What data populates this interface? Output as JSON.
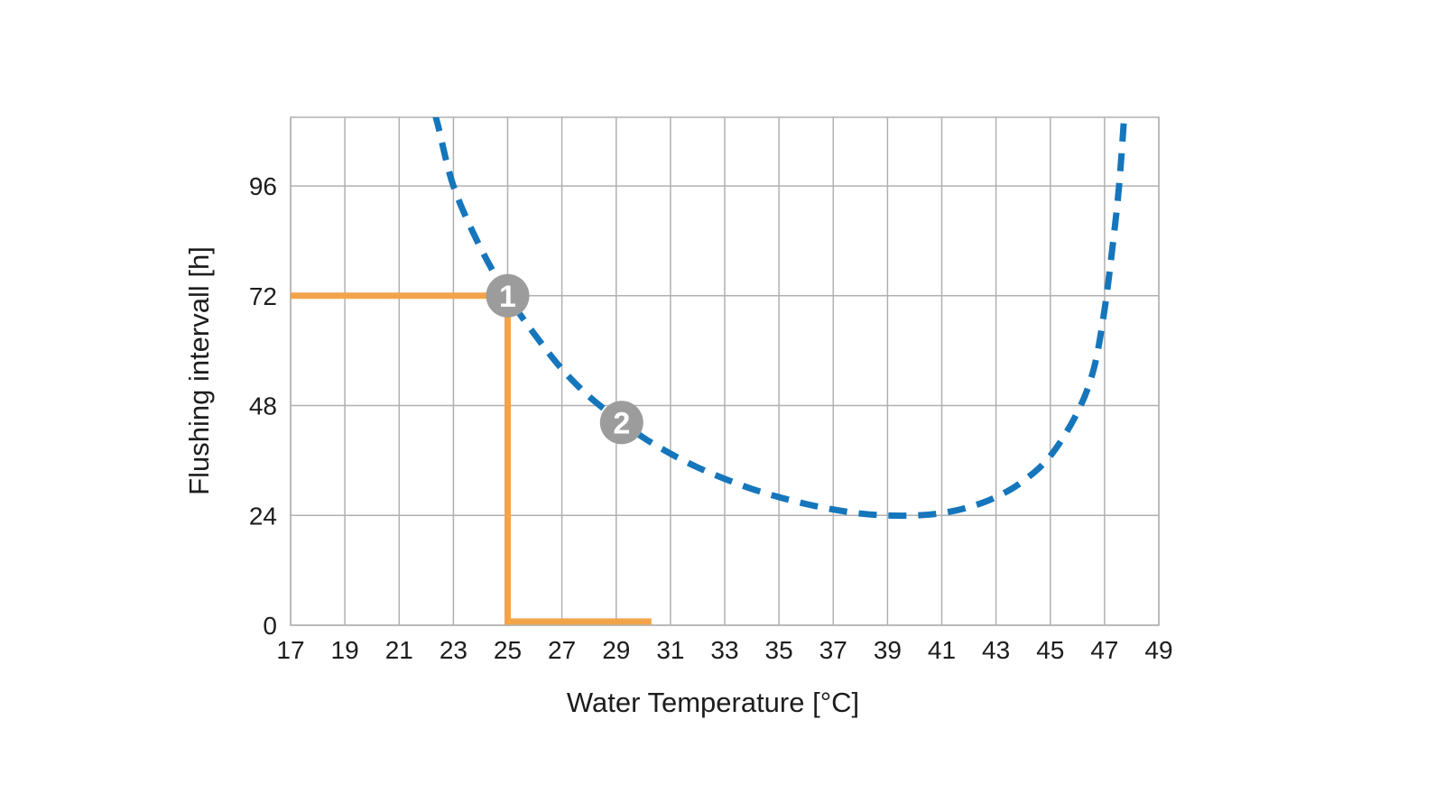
{
  "chart_data": {
    "type": "line",
    "title": "",
    "xlabel": "Water Temperature [°C]",
    "ylabel": "Flushing intervall [h]",
    "xlim": [
      17,
      49
    ],
    "ylim": [
      0,
      111
    ],
    "x_ticks": [
      17,
      19,
      21,
      23,
      25,
      27,
      29,
      31,
      33,
      35,
      37,
      39,
      41,
      43,
      45,
      47,
      49
    ],
    "y_ticks": [
      0,
      24,
      48,
      72,
      96
    ],
    "grid": true,
    "legend": "none",
    "grid_color": "#b0b0b0",
    "text_color": "#1d1d1d",
    "marker_color": "#9c9c9c",
    "marker_text_color": "#ffffff",
    "series": [
      {
        "name": "flushing-interval-curve",
        "style": "dashed",
        "color": "#1576bc",
        "points": [
          [
            22.0,
            118
          ],
          [
            22.4,
            110
          ],
          [
            23,
            96
          ],
          [
            24,
            82.5
          ],
          [
            25,
            72
          ],
          [
            26,
            63.5
          ],
          [
            27,
            56
          ],
          [
            28,
            50
          ],
          [
            29,
            45.3
          ],
          [
            30,
            41
          ],
          [
            31,
            37.5
          ],
          [
            32,
            34.5
          ],
          [
            33,
            32
          ],
          [
            34,
            29.8
          ],
          [
            35,
            28
          ],
          [
            36,
            26.5
          ],
          [
            37,
            25.3
          ],
          [
            38,
            24.4
          ],
          [
            39,
            24
          ],
          [
            40,
            24
          ],
          [
            41,
            24.5
          ],
          [
            42,
            25.8
          ],
          [
            43,
            28
          ],
          [
            44,
            31.5
          ],
          [
            45,
            37
          ],
          [
            46,
            46.5
          ],
          [
            46.6,
            56
          ],
          [
            47,
            69
          ],
          [
            47.3,
            83
          ],
          [
            47.55,
            97
          ],
          [
            47.8,
            118
          ]
        ]
      },
      {
        "name": "guide-line",
        "style": "solid",
        "color": "#f3a44a",
        "points": [
          [
            17,
            72
          ],
          [
            25,
            72
          ],
          [
            25,
            0.8
          ],
          [
            30.3,
            0.8
          ]
        ]
      }
    ],
    "markers": [
      {
        "label": "1",
        "x": 25,
        "y": 72
      },
      {
        "label": "2",
        "x": 29.2,
        "y": 44.3
      }
    ]
  }
}
